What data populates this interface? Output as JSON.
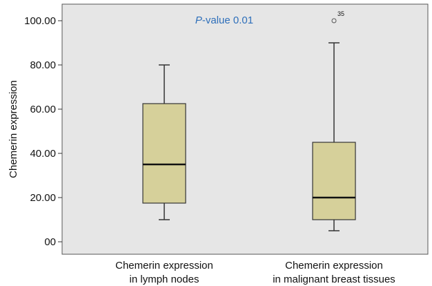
{
  "chart_data": {
    "type": "box",
    "ylabel": "Chemerin expression",
    "ylim": [
      0,
      100
    ],
    "yticks": [
      0,
      20,
      40,
      60,
      80,
      100
    ],
    "ytick_labels": [
      "00",
      "20.00",
      "40.00",
      "60.00",
      "80.00",
      "100.00"
    ],
    "annotation": {
      "italic": "P",
      "text": "-value 0.01"
    },
    "categories": [
      {
        "line1": "Chemerin expression",
        "line2": "in lymph nodes"
      },
      {
        "line1": "Chemerin expression",
        "line2": "in malignant breast tissues"
      }
    ],
    "boxes": [
      {
        "min": 10,
        "q1": 17.5,
        "median": 35,
        "q3": 62.5,
        "max": 80,
        "outliers": []
      },
      {
        "min": 5,
        "q1": 10,
        "median": 20,
        "q3": 45,
        "max": 90,
        "outliers": [
          {
            "value": 100,
            "label": "35"
          }
        ]
      }
    ],
    "colors": {
      "plot_bg": "#e6e6e6",
      "box_fill": "#d6d09a",
      "box_stroke": "#333333",
      "pvalue": "#2e6fba"
    },
    "grid": false
  }
}
